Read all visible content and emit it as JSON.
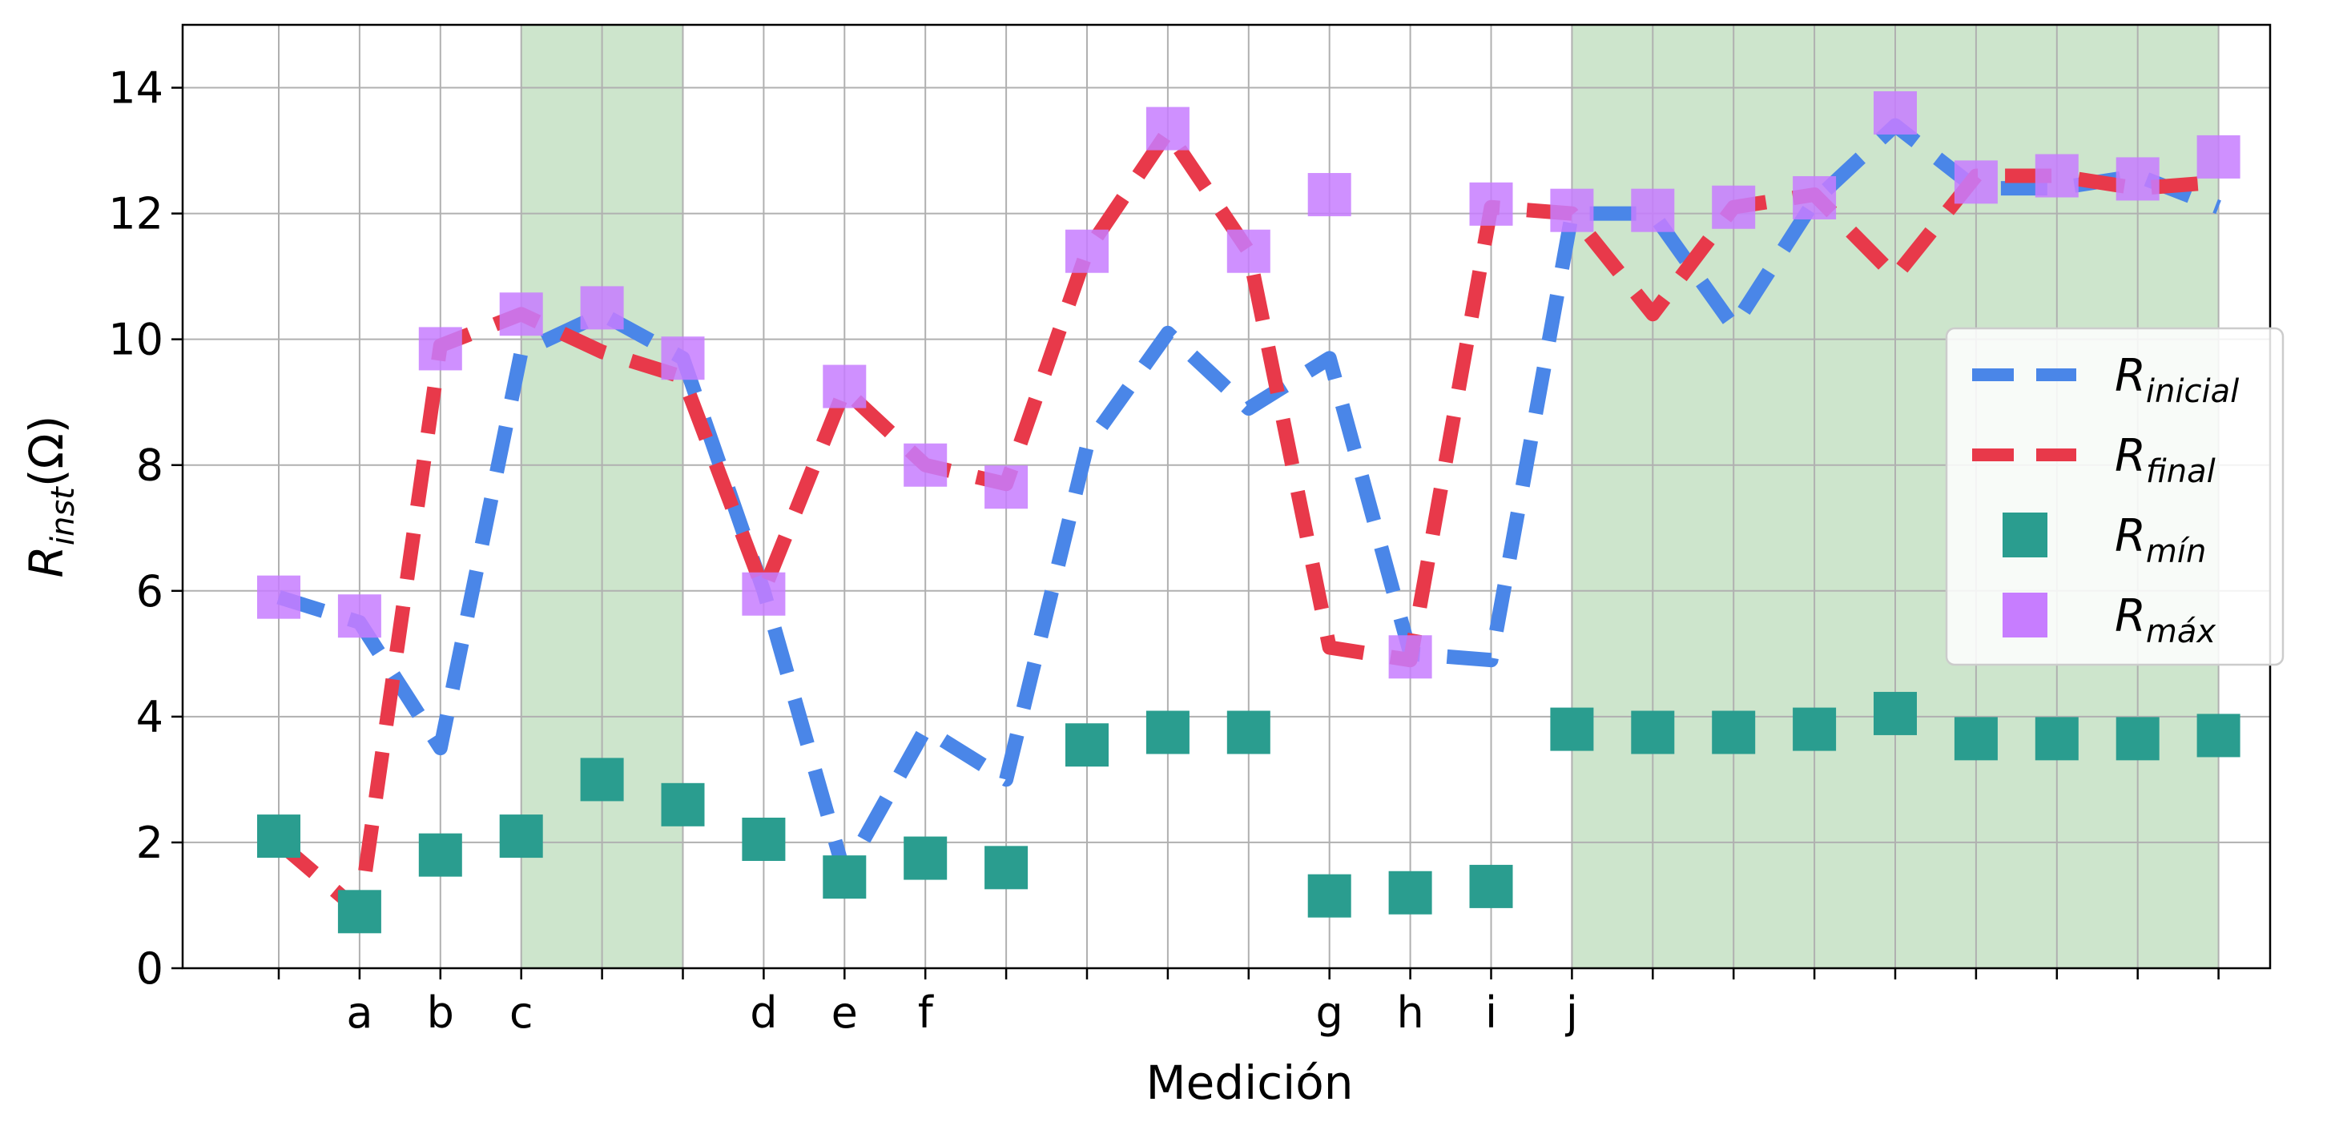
{
  "chart_data": {
    "type": "line",
    "title": "",
    "xlabel": "Medición",
    "ylabel": {
      "main": "R",
      "sub": "inst",
      "suffix": "(Ω)"
    },
    "ylim": [
      0,
      15
    ],
    "yticks": [
      0,
      2,
      4,
      6,
      8,
      10,
      12,
      14
    ],
    "grid": true,
    "legend_position": "right",
    "x": [
      1,
      2,
      3,
      4,
      5,
      6,
      7,
      8,
      9,
      10,
      11,
      12,
      13,
      14,
      15,
      16,
      17,
      18,
      19,
      20,
      21,
      22,
      23,
      24,
      25
    ],
    "x_tick_labels": [
      "",
      "a",
      "b",
      "c",
      "",
      "",
      "d",
      "e",
      "f",
      "",
      "",
      "",
      "",
      "g",
      "h",
      "i",
      "j",
      "",
      "",
      "",
      "",
      "",
      "",
      "",
      ""
    ],
    "shaded_regions": [
      [
        4,
        6
      ],
      [
        17,
        25
      ]
    ],
    "series": [
      {
        "name": "inicial",
        "label_main": "R",
        "label_sub": "inicial",
        "style": "dashed-line",
        "color": "#4a86e8",
        "values": [
          5.9,
          5.5,
          3.5,
          9.8,
          10.4,
          9.7,
          6.0,
          1.5,
          3.8,
          3.0,
          8.3,
          10.1,
          8.9,
          9.7,
          5.0,
          4.9,
          12.0,
          12.0,
          10.2,
          12.2,
          13.4,
          12.4,
          12.4,
          12.6,
          12.1
        ]
      },
      {
        "name": "final",
        "label_main": "R",
        "label_sub": "final",
        "style": "dashed-line",
        "color": "#e8394a",
        "values": [
          2.0,
          0.9,
          9.9,
          10.4,
          9.8,
          9.4,
          6.0,
          9.2,
          8.0,
          7.7,
          11.4,
          13.3,
          11.4,
          5.1,
          4.9,
          12.1,
          12.0,
          10.4,
          12.1,
          12.3,
          11.0,
          12.6,
          12.6,
          12.4,
          12.5
        ]
      },
      {
        "name": "mín",
        "label_main": "R",
        "label_sub": "mín",
        "style": "square-marker",
        "color": "#2a9d8f",
        "values": [
          2.1,
          0.9,
          1.8,
          2.1,
          3.0,
          2.6,
          2.05,
          1.45,
          1.75,
          1.6,
          3.55,
          3.75,
          3.75,
          1.15,
          1.2,
          1.3,
          3.8,
          3.75,
          3.75,
          3.8,
          4.05,
          3.65,
          3.65,
          3.65,
          3.7
        ]
      },
      {
        "name": "máx",
        "label_main": "R",
        "label_sub": "máx",
        "style": "square-marker",
        "color": "#c77dff",
        "values": [
          5.9,
          5.6,
          9.85,
          10.4,
          10.5,
          9.7,
          5.95,
          9.25,
          8.0,
          7.65,
          11.4,
          13.35,
          11.4,
          12.3,
          4.95,
          12.15,
          12.05,
          12.05,
          12.1,
          12.25,
          13.6,
          12.5,
          12.6,
          12.55,
          12.9
        ]
      }
    ]
  }
}
